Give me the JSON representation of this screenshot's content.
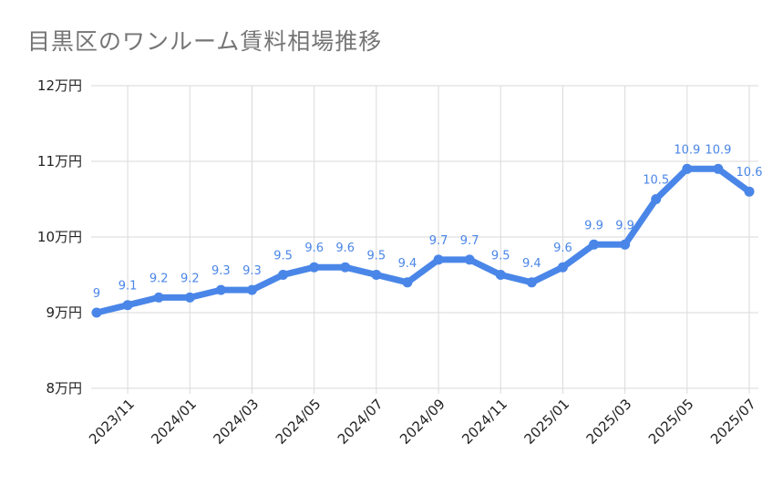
{
  "chart_data": {
    "type": "line",
    "title": "目黒区のワンルーム賃料相場推移",
    "xlabel": "",
    "ylabel": "",
    "ylim": [
      8,
      12
    ],
    "yticks": [
      8,
      9,
      10,
      11,
      12
    ],
    "ytick_labels": [
      "8万円",
      "9万円",
      "10万円",
      "11万円",
      "12万円"
    ],
    "unit_suffix": "万円",
    "grid": true,
    "line_color": "#4a86e8",
    "label_color": "#4a86e8",
    "x": [
      "2023/10",
      "2023/11",
      "2023/12",
      "2024/01",
      "2024/02",
      "2024/03",
      "2024/04",
      "2024/05",
      "2024/06",
      "2024/07",
      "2024/08",
      "2024/09",
      "2024/10",
      "2024/11",
      "2024/12",
      "2025/01",
      "2025/02",
      "2025/03",
      "2025/04",
      "2025/05",
      "2025/06",
      "2025/07"
    ],
    "x_tick_labels": [
      "2023/11",
      "2024/01",
      "2024/03",
      "2024/05",
      "2024/07",
      "2024/09",
      "2024/11",
      "2025/01",
      "2025/03",
      "2025/05",
      "2025/07"
    ],
    "series": [
      {
        "name": "賃料相場",
        "values": [
          9,
          9.1,
          9.2,
          9.2,
          9.3,
          9.3,
          9.5,
          9.6,
          9.6,
          9.5,
          9.4,
          9.7,
          9.7,
          9.5,
          9.4,
          9.6,
          9.9,
          9.9,
          10.5,
          10.9,
          10.9,
          10.6
        ],
        "data_labels": [
          "9",
          "9.1",
          "9.2",
          "9.2",
          "9.3",
          "9.3",
          "9.5",
          "9.6",
          "9.6",
          "9.5",
          "9.4",
          "9.7",
          "9.7",
          "9.5",
          "9.4",
          "9.6",
          "9.9",
          "9.9",
          "10.5",
          "10.9",
          "10.9",
          "10.6"
        ]
      }
    ]
  }
}
